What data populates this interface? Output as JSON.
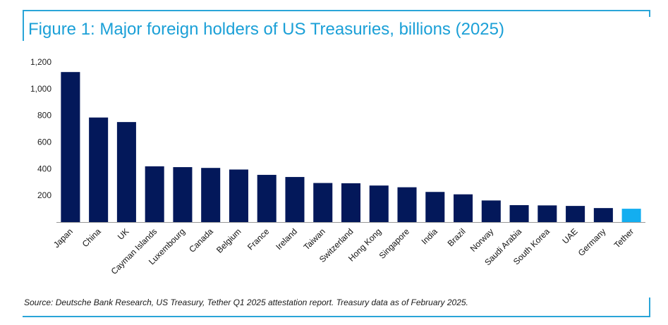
{
  "title": "Figure 1: Major foreign holders of US Treasuries, billions (2025)",
  "source": "Source: Deutsche Bank Research, US Treasury, Tether Q1 2025 attestation report. Treasury data as of February 2025.",
  "colors": {
    "accent": "#1ba0d7",
    "frame": "#2aa5d8",
    "bar": "#03185a",
    "highlight_bar": "#13aef0"
  },
  "chart_data": {
    "type": "bar",
    "title": "Figure 1: Major foreign holders of US Treasuries, billions (2025)",
    "xlabel": "",
    "ylabel": "",
    "ylim": [
      0,
      1200
    ],
    "yticks": [
      200,
      400,
      600,
      800,
      1000,
      1200
    ],
    "ytick_labels": [
      "200",
      "400",
      "600",
      "800",
      "1,000",
      "1,200"
    ],
    "grid": false,
    "categories": [
      "Japan",
      "China",
      "UK",
      "Cayman Islands",
      "Luxembourg",
      "Canada",
      "Belgium",
      "France",
      "Ireland",
      "Taiwan",
      "Switzerland",
      "Hong Kong",
      "Singapore",
      "India",
      "Brazil",
      "Norway",
      "Saudi Arabia",
      "South Korea",
      "UAE",
      "Germany",
      "Tether"
    ],
    "values": [
      1125,
      784,
      750,
      418,
      412,
      406,
      394,
      354,
      338,
      293,
      291,
      274,
      261,
      226,
      208,
      162,
      127,
      125,
      121,
      105,
      100
    ],
    "highlight": "Tether"
  }
}
